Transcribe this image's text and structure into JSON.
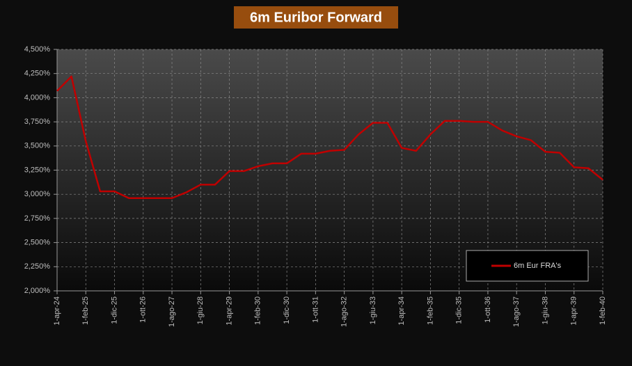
{
  "chart_data": {
    "type": "line",
    "title": "6m Euribor Forward",
    "categories": [
      "1-apr-24",
      null,
      "1-feb-25",
      null,
      "1-dic-25",
      null,
      "1-ott-26",
      null,
      "1-ago-27",
      null,
      "1-giu-28",
      null,
      "1-apr-29",
      null,
      "1-feb-30",
      null,
      "1-dic-30",
      null,
      "1-ott-31",
      null,
      "1-ago-32",
      null,
      "1-giu-33",
      null,
      "1-apr-34",
      null,
      "1-feb-35",
      null,
      "1-dic-35",
      null,
      "1-ott-36",
      null,
      "1-ago-37",
      null,
      "1-giu-38",
      null,
      "1-apr-39",
      null,
      "1-feb-40"
    ],
    "series": [
      {
        "name": "6m Eur FRA's",
        "color": "#c00000",
        "values": [
          4.07,
          4.22,
          3.55,
          3.03,
          3.03,
          2.96,
          2.96,
          2.96,
          2.96,
          3.02,
          3.1,
          3.1,
          3.24,
          3.24,
          3.29,
          3.32,
          3.32,
          3.42,
          3.42,
          3.45,
          3.46,
          3.62,
          3.74,
          3.74,
          3.48,
          3.45,
          3.62,
          3.76,
          3.76,
          3.75,
          3.75,
          3.66,
          3.6,
          3.56,
          3.44,
          3.43,
          3.28,
          3.27,
          3.15
        ]
      }
    ],
    "ylim": [
      2.0,
      4.5
    ],
    "yticks": [
      {
        "value": 2.0,
        "label": "2,000%"
      },
      {
        "value": 2.25,
        "label": "2,250%"
      },
      {
        "value": 2.5,
        "label": "2,500%"
      },
      {
        "value": 2.75,
        "label": "2,750%"
      },
      {
        "value": 3.0,
        "label": "3,000%"
      },
      {
        "value": 3.25,
        "label": "3,250%"
      },
      {
        "value": 3.5,
        "label": "3,500%"
      },
      {
        "value": 3.75,
        "label": "3,750%"
      },
      {
        "value": 4.0,
        "label": "4,000%"
      },
      {
        "value": 4.25,
        "label": "4,250%"
      },
      {
        "value": 4.5,
        "label": "4,500%"
      }
    ],
    "grid": true,
    "legend": "bottom-right"
  }
}
